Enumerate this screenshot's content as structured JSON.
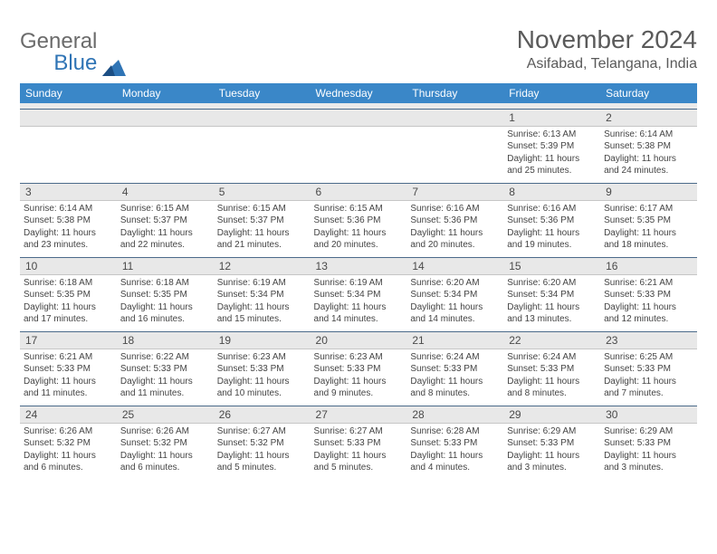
{
  "brand": {
    "general": "General",
    "blue": "Blue",
    "tri_color": "#2f74b5"
  },
  "title": "November 2024",
  "location": "Asifabad, Telangana, India",
  "colors": {
    "header_bg": "#3a87c8",
    "header_fg": "#ffffff",
    "date_bg": "#e8e8e8",
    "rule": "#4b6a8a",
    "text": "#444444"
  },
  "daynames": [
    "Sunday",
    "Monday",
    "Tuesday",
    "Wednesday",
    "Thursday",
    "Friday",
    "Saturday"
  ],
  "weeks": [
    [
      null,
      null,
      null,
      null,
      null,
      {
        "d": "1",
        "sr": "6:13 AM",
        "ss": "5:39 PM",
        "dl": "11 hours and 25 minutes."
      },
      {
        "d": "2",
        "sr": "6:14 AM",
        "ss": "5:38 PM",
        "dl": "11 hours and 24 minutes."
      }
    ],
    [
      {
        "d": "3",
        "sr": "6:14 AM",
        "ss": "5:38 PM",
        "dl": "11 hours and 23 minutes."
      },
      {
        "d": "4",
        "sr": "6:15 AM",
        "ss": "5:37 PM",
        "dl": "11 hours and 22 minutes."
      },
      {
        "d": "5",
        "sr": "6:15 AM",
        "ss": "5:37 PM",
        "dl": "11 hours and 21 minutes."
      },
      {
        "d": "6",
        "sr": "6:15 AM",
        "ss": "5:36 PM",
        "dl": "11 hours and 20 minutes."
      },
      {
        "d": "7",
        "sr": "6:16 AM",
        "ss": "5:36 PM",
        "dl": "11 hours and 20 minutes."
      },
      {
        "d": "8",
        "sr": "6:16 AM",
        "ss": "5:36 PM",
        "dl": "11 hours and 19 minutes."
      },
      {
        "d": "9",
        "sr": "6:17 AM",
        "ss": "5:35 PM",
        "dl": "11 hours and 18 minutes."
      }
    ],
    [
      {
        "d": "10",
        "sr": "6:18 AM",
        "ss": "5:35 PM",
        "dl": "11 hours and 17 minutes."
      },
      {
        "d": "11",
        "sr": "6:18 AM",
        "ss": "5:35 PM",
        "dl": "11 hours and 16 minutes."
      },
      {
        "d": "12",
        "sr": "6:19 AM",
        "ss": "5:34 PM",
        "dl": "11 hours and 15 minutes."
      },
      {
        "d": "13",
        "sr": "6:19 AM",
        "ss": "5:34 PM",
        "dl": "11 hours and 14 minutes."
      },
      {
        "d": "14",
        "sr": "6:20 AM",
        "ss": "5:34 PM",
        "dl": "11 hours and 14 minutes."
      },
      {
        "d": "15",
        "sr": "6:20 AM",
        "ss": "5:34 PM",
        "dl": "11 hours and 13 minutes."
      },
      {
        "d": "16",
        "sr": "6:21 AM",
        "ss": "5:33 PM",
        "dl": "11 hours and 12 minutes."
      }
    ],
    [
      {
        "d": "17",
        "sr": "6:21 AM",
        "ss": "5:33 PM",
        "dl": "11 hours and 11 minutes."
      },
      {
        "d": "18",
        "sr": "6:22 AM",
        "ss": "5:33 PM",
        "dl": "11 hours and 11 minutes."
      },
      {
        "d": "19",
        "sr": "6:23 AM",
        "ss": "5:33 PM",
        "dl": "11 hours and 10 minutes."
      },
      {
        "d": "20",
        "sr": "6:23 AM",
        "ss": "5:33 PM",
        "dl": "11 hours and 9 minutes."
      },
      {
        "d": "21",
        "sr": "6:24 AM",
        "ss": "5:33 PM",
        "dl": "11 hours and 8 minutes."
      },
      {
        "d": "22",
        "sr": "6:24 AM",
        "ss": "5:33 PM",
        "dl": "11 hours and 8 minutes."
      },
      {
        "d": "23",
        "sr": "6:25 AM",
        "ss": "5:33 PM",
        "dl": "11 hours and 7 minutes."
      }
    ],
    [
      {
        "d": "24",
        "sr": "6:26 AM",
        "ss": "5:32 PM",
        "dl": "11 hours and 6 minutes."
      },
      {
        "d": "25",
        "sr": "6:26 AM",
        "ss": "5:32 PM",
        "dl": "11 hours and 6 minutes."
      },
      {
        "d": "26",
        "sr": "6:27 AM",
        "ss": "5:32 PM",
        "dl": "11 hours and 5 minutes."
      },
      {
        "d": "27",
        "sr": "6:27 AM",
        "ss": "5:33 PM",
        "dl": "11 hours and 5 minutes."
      },
      {
        "d": "28",
        "sr": "6:28 AM",
        "ss": "5:33 PM",
        "dl": "11 hours and 4 minutes."
      },
      {
        "d": "29",
        "sr": "6:29 AM",
        "ss": "5:33 PM",
        "dl": "11 hours and 3 minutes."
      },
      {
        "d": "30",
        "sr": "6:29 AM",
        "ss": "5:33 PM",
        "dl": "11 hours and 3 minutes."
      }
    ]
  ],
  "labels": {
    "sunrise": "Sunrise: ",
    "sunset": "Sunset: ",
    "daylight": "Daylight: "
  }
}
